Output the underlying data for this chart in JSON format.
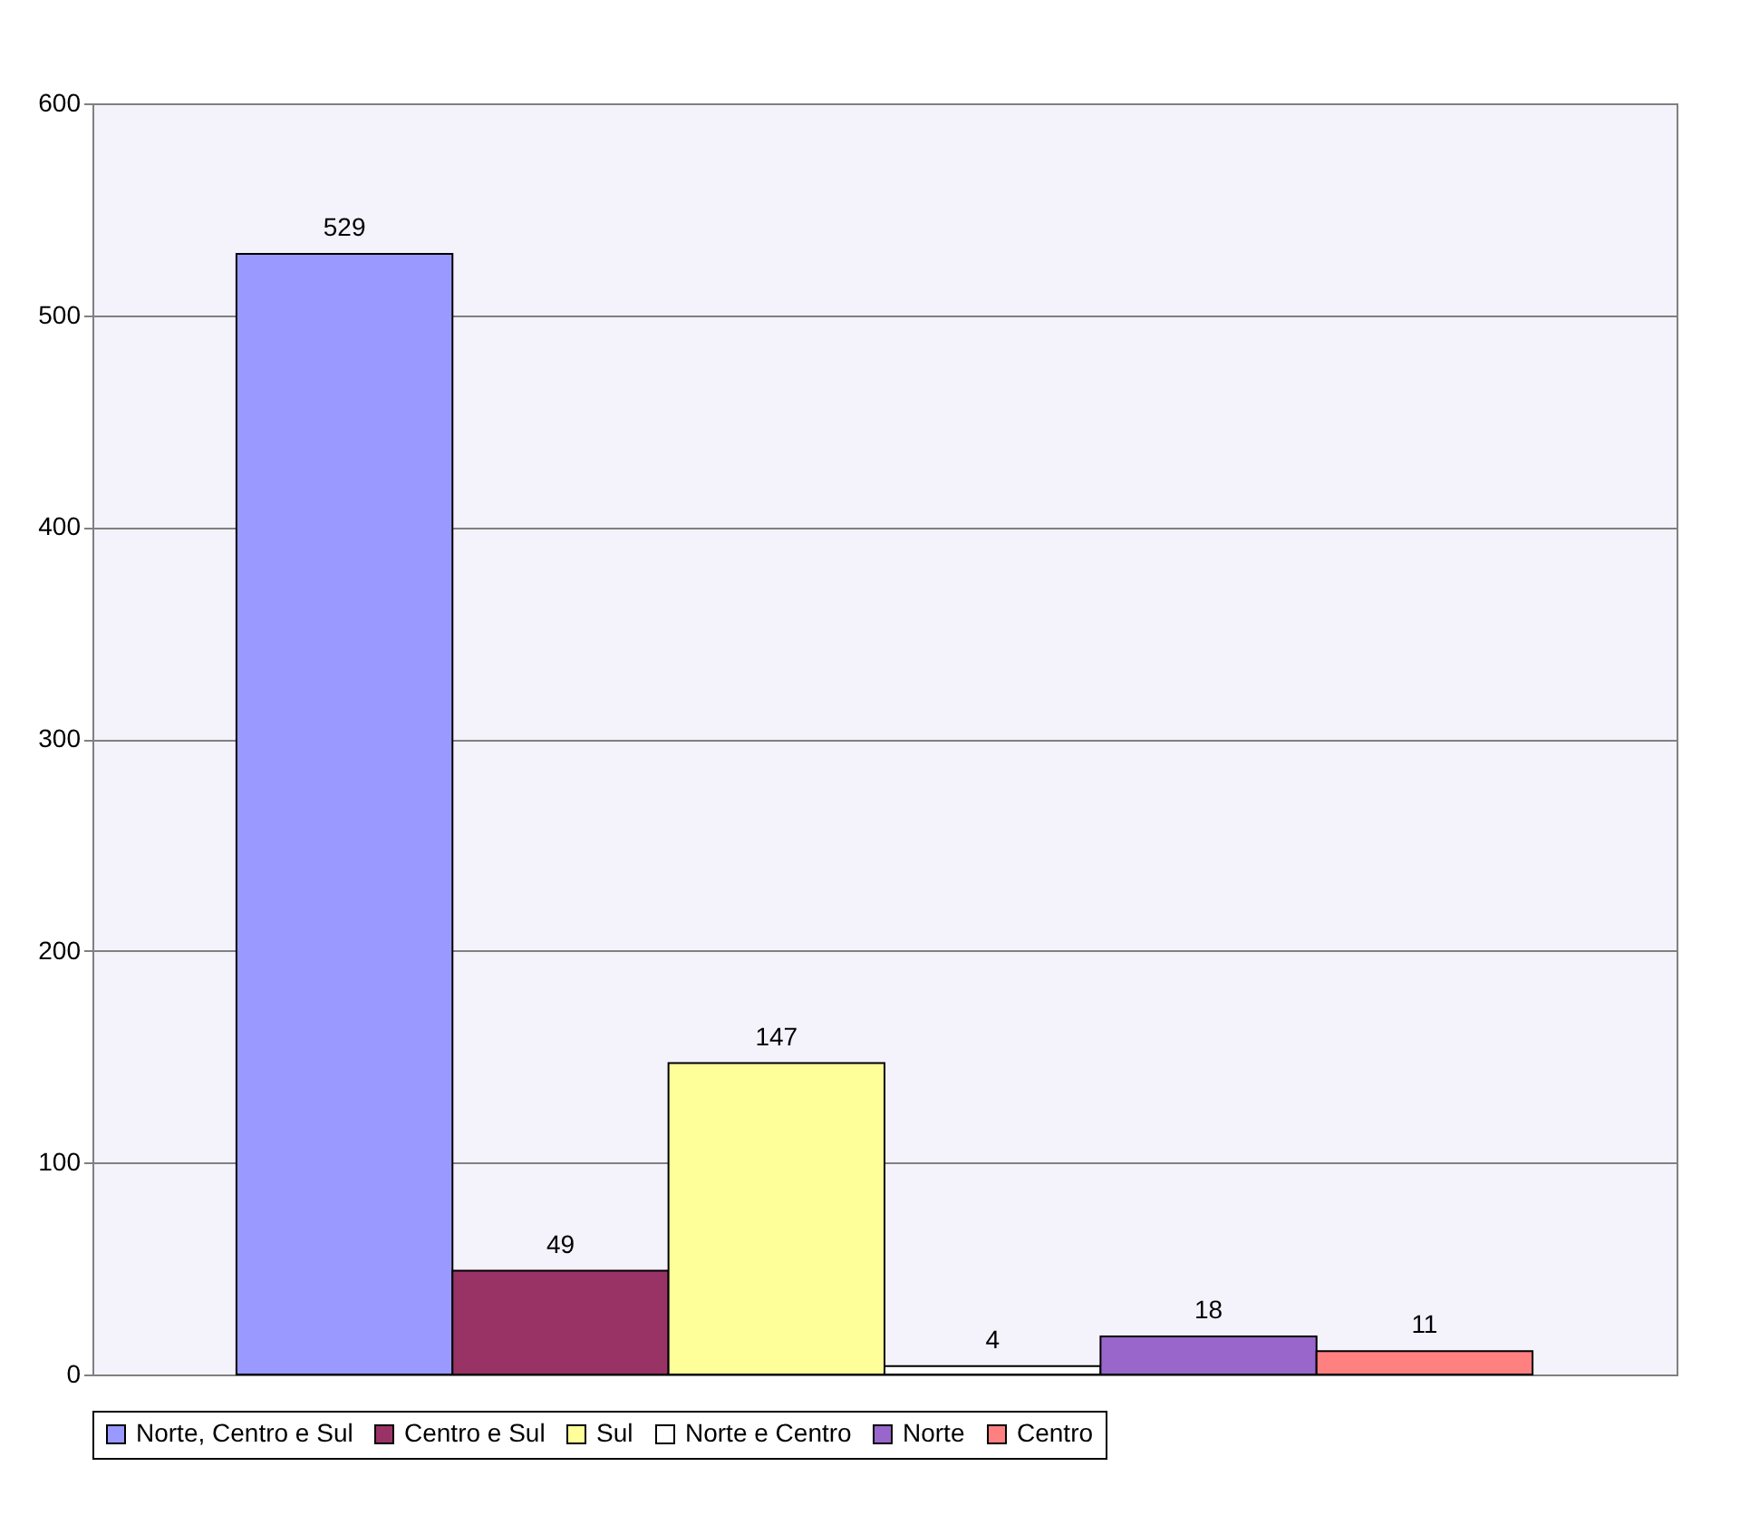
{
  "chart_data": {
    "type": "bar",
    "categories": [
      null
    ],
    "series": [
      {
        "name": "Norte, Centro e Sul",
        "color": "#9999ff",
        "values": [
          529
        ]
      },
      {
        "name": "Centro e Sul",
        "color": "#993366",
        "values": [
          49
        ]
      },
      {
        "name": "Sul",
        "color": "#ffff99",
        "values": [
          147
        ]
      },
      {
        "name": "Norte e Centro",
        "color": "#ffffff",
        "values": [
          4
        ]
      },
      {
        "name": "Norte",
        "color": "#9966cc",
        "values": [
          18
        ]
      },
      {
        "name": "Centro",
        "color": "#ff8080",
        "values": [
          11
        ]
      }
    ],
    "ylim": [
      0,
      600
    ],
    "yticks": [
      0,
      100,
      200,
      300,
      400,
      500,
      600
    ],
    "grid": "y",
    "legend": "bottom",
    "data_labels": true
  }
}
